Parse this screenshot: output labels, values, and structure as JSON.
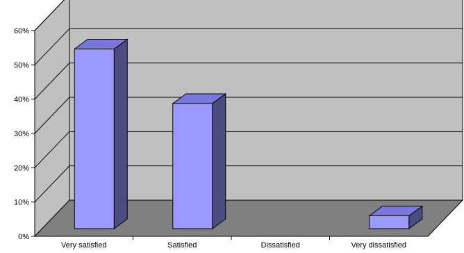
{
  "colors": {
    "back_wall": "#c0c0c0",
    "floor": "#808080",
    "gridline": "#000000",
    "bar_front": "#9999ff",
    "bar_top": "#7777dd",
    "bar_side": "#4c4c80",
    "bar_outline": "#000000"
  },
  "chart_data": {
    "type": "bar",
    "style": "3d-column",
    "categories": [
      "Very satisfied",
      "Satisfied",
      "Dissatisfied",
      "Very dissatisfied"
    ],
    "values": [
      56,
      39,
      0,
      4
    ],
    "yticks": [
      "0%",
      "10%",
      "20%",
      "30%",
      "40%",
      "50%",
      "60%"
    ],
    "ylim": [
      0,
      60
    ],
    "unit": "%",
    "grid": true,
    "legend": "none"
  }
}
